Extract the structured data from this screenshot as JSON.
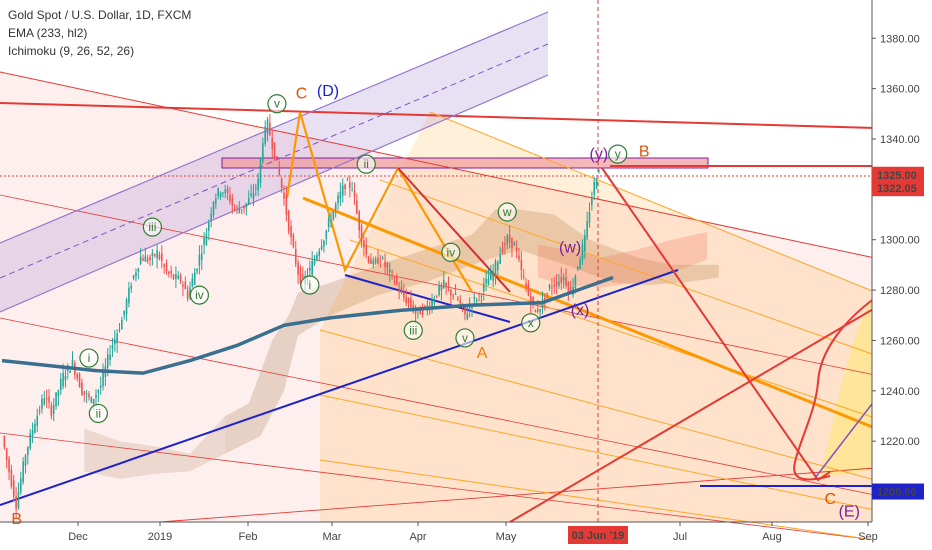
{
  "legend": {
    "title": "Gold Spot / U.S. Dollar, 1D, FXCM",
    "ema": "EMA (233, hl2)",
    "ichimoku": "Ichimoku (9, 26, 52, 26)"
  },
  "chart_data": {
    "type": "candlestick",
    "symbol": "Gold Spot / U.S. Dollar",
    "timeframe": "1D",
    "source": "FXCM",
    "y_ticks": [
      1200,
      1220,
      1240,
      1260,
      1280,
      1300,
      1320,
      1340,
      1360,
      1380
    ],
    "y_tick_labels": [
      "1200.00",
      "1220.00",
      "1240.00",
      "1260.00",
      "1280.00",
      "1300.00",
      "1320.00",
      "1340.00",
      "1360.00",
      "1380.00"
    ],
    "ylim": [
      1187.5,
      1394
    ],
    "x_labels": [
      "Dec",
      "2019",
      "Feb",
      "Mar",
      "Apr",
      "May",
      "Jun",
      "Jul",
      "Aug",
      "Sep"
    ],
    "cursor_date_label": "03 Jun '19",
    "price_labels": [
      {
        "value": 1325.0,
        "text": "1325.00",
        "color": "#e53935"
      },
      {
        "value": 1322.05,
        "text": "1322.05",
        "color": "#e53935"
      },
      {
        "value": 1200.0,
        "text": "1200.00",
        "color": "#1e22c9"
      }
    ],
    "price_path": [
      [
        1,
        1222
      ],
      [
        4,
        1208
      ],
      [
        7,
        1195
      ],
      [
        11,
        1215
      ],
      [
        15,
        1228
      ],
      [
        19,
        1238
      ],
      [
        22,
        1232
      ],
      [
        27,
        1246
      ],
      [
        31,
        1251
      ],
      [
        35,
        1240
      ],
      [
        39,
        1236
      ],
      [
        43,
        1242
      ],
      [
        47,
        1256
      ],
      [
        52,
        1268
      ],
      [
        56,
        1283
      ],
      [
        60,
        1293
      ],
      [
        64,
        1292
      ],
      [
        67,
        1295
      ],
      [
        71,
        1287
      ],
      [
        74,
        1285
      ],
      [
        77,
        1284
      ],
      [
        80,
        1278
      ],
      [
        84,
        1290
      ],
      [
        88,
        1303
      ],
      [
        91,
        1316
      ],
      [
        94,
        1320
      ],
      [
        97,
        1318
      ],
      [
        100,
        1312
      ],
      [
        104,
        1313
      ],
      [
        107,
        1317
      ],
      [
        110,
        1323
      ],
      [
        112,
        1340
      ],
      [
        114,
        1346
      ],
      [
        116,
        1338
      ],
      [
        118,
        1330
      ],
      [
        121,
        1316
      ],
      [
        124,
        1300
      ],
      [
        127,
        1287
      ],
      [
        129,
        1283
      ],
      [
        132,
        1288
      ],
      [
        135,
        1295
      ],
      [
        138,
        1301
      ],
      [
        141,
        1309
      ],
      [
        144,
        1316
      ],
      [
        147,
        1322
      ],
      [
        150,
        1321
      ],
      [
        153,
        1305
      ],
      [
        156,
        1294
      ],
      [
        159,
        1290
      ],
      [
        162,
        1293
      ],
      [
        165,
        1288
      ],
      [
        168,
        1284
      ],
      [
        171,
        1278
      ],
      [
        174,
        1275
      ],
      [
        177,
        1271
      ],
      [
        180,
        1272
      ],
      [
        183,
        1274
      ],
      [
        186,
        1279
      ],
      [
        189,
        1282
      ],
      [
        192,
        1279
      ],
      [
        195,
        1276
      ],
      [
        198,
        1270
      ],
      [
        201,
        1275
      ],
      [
        204,
        1278
      ],
      [
        207,
        1283
      ],
      [
        210,
        1287
      ],
      [
        213,
        1295
      ],
      [
        216,
        1300
      ],
      [
        219,
        1298
      ],
      [
        222,
        1287
      ],
      [
        225,
        1278
      ],
      [
        228,
        1271
      ],
      [
        231,
        1275
      ],
      [
        234,
        1281
      ],
      [
        237,
        1283
      ],
      [
        240,
        1285
      ],
      [
        243,
        1279
      ],
      [
        246,
        1290
      ],
      [
        249,
        1300
      ],
      [
        251,
        1312
      ],
      [
        253,
        1322
      ],
      [
        255,
        1329
      ]
    ],
    "ema_233": [
      [
        0,
        1252
      ],
      [
        40,
        1248
      ],
      [
        60,
        1247
      ],
      [
        80,
        1252
      ],
      [
        100,
        1258
      ],
      [
        120,
        1266
      ],
      [
        140,
        1269
      ],
      [
        170,
        1272
      ],
      [
        200,
        1274
      ],
      [
        230,
        1275
      ],
      [
        260,
        1285
      ]
    ],
    "waves": [
      {
        "label": "i",
        "x": 37,
        "y": 1253
      },
      {
        "label": "ii",
        "x": 41,
        "y": 1231
      },
      {
        "label": "iii",
        "x": 64,
        "y": 1305
      },
      {
        "label": "iv",
        "x": 84,
        "y": 1278
      },
      {
        "label": "v",
        "x": 117,
        "y": 1354
      },
      {
        "label": "i",
        "x": 131,
        "y": 1282
      },
      {
        "label": "ii",
        "x": 155,
        "y": 1330
      },
      {
        "label": "iii",
        "x": 175,
        "y": 1264
      },
      {
        "label": "iv",
        "x": 191,
        "y": 1295
      },
      {
        "label": "v",
        "x": 197,
        "y": 1261
      },
      {
        "label": "w",
        "x": 215,
        "y": 1311
      },
      {
        "label": "x",
        "x": 225,
        "y": 1267
      },
      {
        "label": "y",
        "x": 262,
        "y": 1334
      }
    ],
    "wave_text_labels": [
      {
        "label": "C",
        "x": 125,
        "y": 1358,
        "color": "#e65100"
      },
      {
        "label": "(D)",
        "x": 134,
        "y": 1359,
        "color": "#1e22c9"
      },
      {
        "label": "(y)",
        "x": 250,
        "y": 1334,
        "color": "#7b1fa2"
      },
      {
        "label": "B",
        "x": 271,
        "y": 1335,
        "color": "#e65100"
      },
      {
        "label": "(w)",
        "x": 237,
        "y": 1297,
        "color": "#7b1fa2"
      },
      {
        "label": "(x)",
        "x": 242,
        "y": 1272,
        "color": "#7b1fa2"
      },
      {
        "label": "A",
        "x": 202,
        "y": 1255,
        "color": "#f57c00"
      },
      {
        "label": "B",
        "x": 4,
        "y": 1189,
        "color": "#e65100"
      },
      {
        "label": "C",
        "x": 350,
        "y": 1197,
        "color": "#e65100"
      },
      {
        "label": "(E)",
        "x": 356,
        "y": 1192,
        "color": "#7b1fa2"
      }
    ]
  }
}
